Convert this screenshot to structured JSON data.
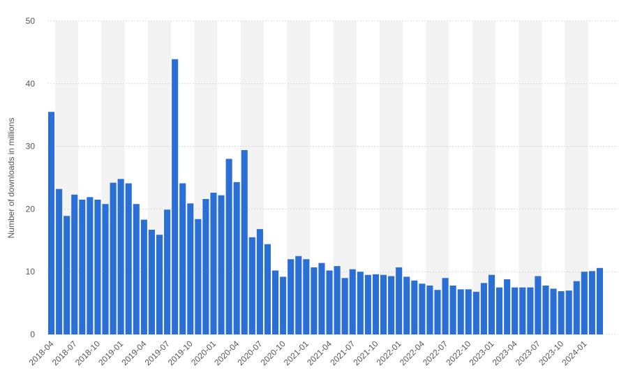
{
  "chart_data": {
    "type": "bar",
    "y_label": "Number of downloads in millions",
    "categories": [
      "2018-04",
      null,
      null,
      "2018-07",
      null,
      null,
      "2018-10",
      null,
      null,
      "2019-01",
      null,
      null,
      "2019-04",
      null,
      null,
      "2019-07",
      null,
      null,
      "2019-10",
      null,
      null,
      "2020-01",
      null,
      null,
      "2020-04",
      null,
      null,
      "2020-07",
      null,
      null,
      "2020-10",
      null,
      null,
      "2021-01",
      null,
      null,
      "2021-04",
      null,
      null,
      "2021-07",
      null,
      null,
      "2021-10",
      null,
      null,
      "2022-01",
      null,
      null,
      "2022-04",
      null,
      null,
      "2022-07",
      null,
      null,
      "2022-10",
      null,
      null,
      "2023-01",
      null,
      null,
      "2023-04",
      null,
      null,
      "2023-07",
      null,
      null,
      "2023-10",
      null,
      null,
      "2024-01",
      null,
      null
    ],
    "values": [
      35.5,
      23.2,
      18.9,
      22.3,
      21.5,
      21.9,
      21.5,
      20.8,
      24.2,
      24.8,
      24.1,
      20.8,
      18.3,
      16.7,
      15.9,
      19.9,
      43.9,
      24.1,
      20.9,
      18.4,
      21.6,
      22.6,
      22.2,
      28.0,
      24.3,
      29.4,
      15.5,
      16.8,
      14.4,
      10.2,
      9.2,
      12.0,
      12.5,
      12.0,
      10.7,
      11.4,
      10.2,
      10.9,
      9.0,
      10.4,
      10.0,
      9.5,
      9.6,
      9.5,
      9.3,
      10.7,
      9.2,
      8.6,
      8.1,
      7.8,
      7.1,
      9.0,
      7.8,
      7.2,
      7.2,
      6.8,
      8.2,
      9.5,
      7.5,
      8.8,
      7.5,
      7.5,
      7.5,
      9.3,
      7.8,
      7.3,
      6.9,
      7.0,
      8.5,
      10.0,
      10.1,
      10.6
    ],
    "color": "#2a6fd6",
    "ylim": [
      0,
      50
    ],
    "yticks": [
      0,
      10,
      20,
      30,
      40,
      50
    ],
    "grid": true
  }
}
